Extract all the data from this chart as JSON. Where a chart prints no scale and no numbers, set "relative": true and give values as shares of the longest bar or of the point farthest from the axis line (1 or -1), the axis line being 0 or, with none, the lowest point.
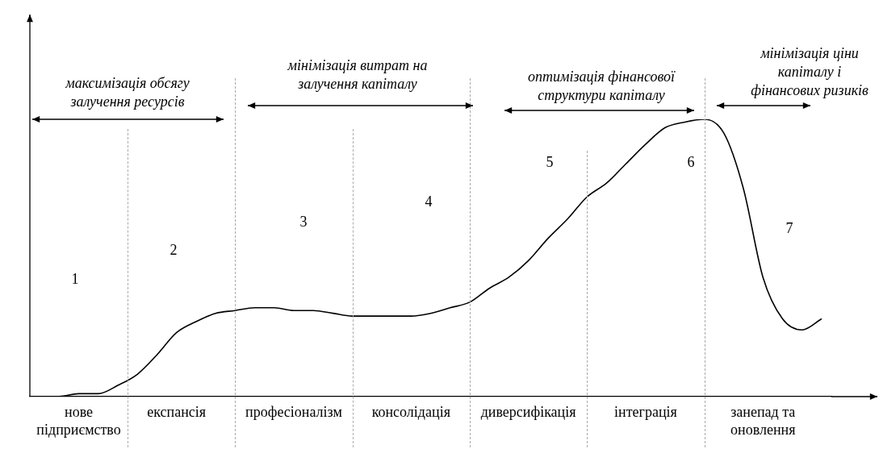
{
  "chart_data": {
    "type": "line",
    "relative": true,
    "grid": "x",
    "legend": false,
    "tick_labels": "x",
    "categories": [
      null,
      null,
      "нове підприємство",
      null,
      null,
      null,
      null,
      "експансія",
      null,
      null,
      null,
      null,
      null,
      "професіоналізм",
      null,
      null,
      null,
      null,
      null,
      "консолідація",
      null,
      null,
      null,
      null,
      null,
      "диверсифікація",
      null,
      null,
      null,
      null,
      null,
      "інтеграція",
      null,
      null,
      null,
      null,
      null,
      "занепад та оновлення",
      null,
      null,
      null
    ],
    "series": [
      {
        "color": "#000000",
        "values": [
          0,
          0,
          0.01,
          0.01,
          0.04,
          0.08,
          0.15,
          0.23,
          0.27,
          0.3,
          0.31,
          0.32,
          0.32,
          0.31,
          0.31,
          0.3,
          0.29,
          0.29,
          0.29,
          0.29,
          0.3,
          0.32,
          0.34,
          0.39,
          0.43,
          0.49,
          0.57,
          0.64,
          0.72,
          0.77,
          0.84,
          0.91,
          0.97,
          0.99,
          1.0,
          0.95,
          0.75,
          0.43,
          0.28,
          0.24,
          0.28
        ]
      }
    ],
    "annotations": [
      "максимізація обсягу залучення ресурсів",
      "мінімізація витрат на залучення капіталу",
      "оптимізація фінансової структури капіталу",
      "мінімізація ціни капіталу і фінансових ризиків",
      "1",
      "2",
      "3",
      "4",
      "5",
      "6",
      "7"
    ]
  }
}
